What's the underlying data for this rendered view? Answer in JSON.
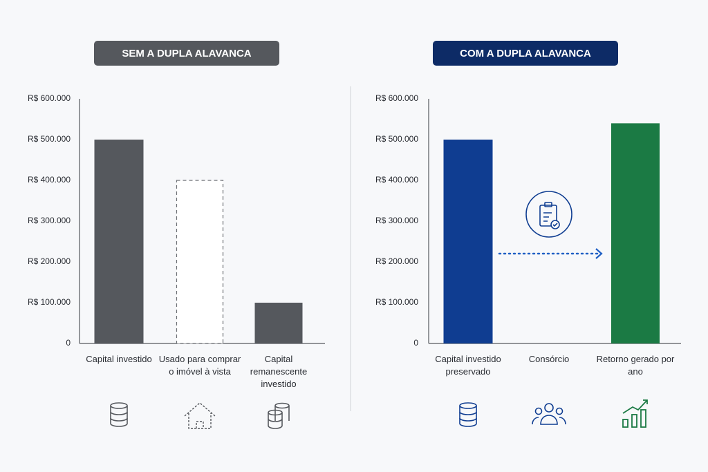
{
  "chart_data": [
    {
      "type": "bar",
      "title": "SEM A DUPLA ALAVANCA",
      "categories": [
        "Capital investido",
        "Usado para comprar o imóvel à vista",
        "Capital remanescente investido"
      ],
      "values": [
        500000,
        400000,
        100000
      ],
      "colors": [
        "#55585d",
        "#6b6e73",
        "#55585d"
      ],
      "dashed": [
        false,
        true,
        false
      ],
      "title_color": "#55585d",
      "ylim": [
        0,
        600000
      ],
      "yticks": [
        0,
        {
          "value": 100000,
          "label": "R$ 100.000"
        },
        {
          "value": 200000,
          "label": "R$ 200.000"
        },
        {
          "value": 300000,
          "label": "R$ 300.000"
        },
        {
          "value": 400000,
          "label": "R$ 400.000"
        },
        {
          "value": 500000,
          "label": "R$ 500.000"
        },
        {
          "value": 600000,
          "label": "R$ 600.000"
        }
      ],
      "grid": false
    },
    {
      "type": "bar",
      "title": "COM A DUPLA ALAVANCA",
      "categories": [
        "Capital investido preservado",
        "Consórcio",
        "Retorno gerado por ano"
      ],
      "values": [
        500000,
        null,
        540000
      ],
      "colors": [
        "#0f3d91",
        null,
        "#1b7a44"
      ],
      "dashed": [
        false,
        false,
        false
      ],
      "title_color": "#0d2b66",
      "ylim": [
        0,
        600000
      ],
      "yticks": [
        0,
        {
          "value": 100000,
          "label": "R$ 100.000"
        },
        {
          "value": 200000,
          "label": "R$ 200.000"
        },
        {
          "value": 300000,
          "label": "R$ 300.000"
        },
        {
          "value": 400000,
          "label": "R$ 400.000"
        },
        {
          "value": 500000,
          "label": "R$ 500.000"
        },
        {
          "value": 600000,
          "label": "R$ 600.000"
        }
      ],
      "grid": false
    }
  ]
}
